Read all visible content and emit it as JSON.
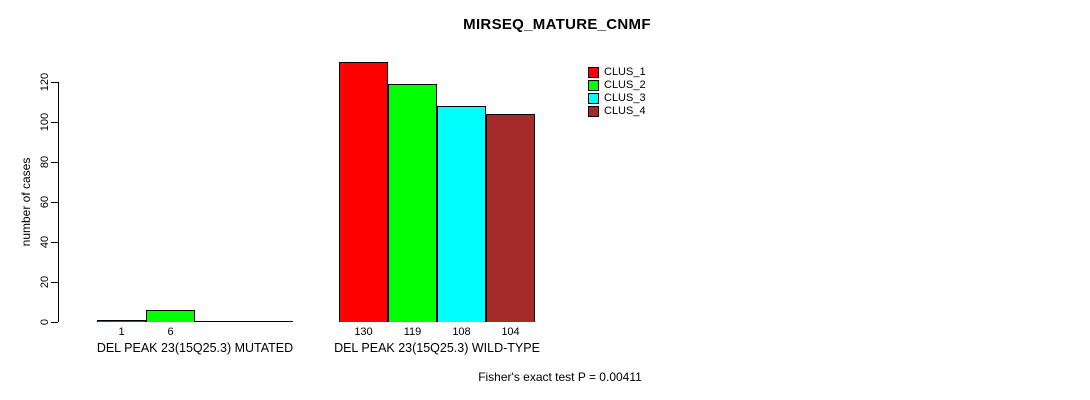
{
  "chart_data": {
    "type": "bar",
    "title": "MIRSEQ_MATURE_CNMF",
    "ylabel": "number of cases",
    "ylim": [
      0,
      130
    ],
    "yticks": [
      0,
      20,
      40,
      60,
      80,
      100,
      120
    ],
    "grid": false,
    "legend_position": "top-right",
    "categories": [
      "DEL PEAK 23(15Q25.3) MUTATED",
      "DEL PEAK 23(15Q25.3) WILD-TYPE"
    ],
    "series": [
      {
        "name": "CLUS_1",
        "color": "#ff0000",
        "values": [
          1,
          130
        ]
      },
      {
        "name": "CLUS_2",
        "color": "#00ff00",
        "values": [
          6,
          119
        ]
      },
      {
        "name": "CLUS_3",
        "color": "#00ffff",
        "values": [
          0,
          108
        ]
      },
      {
        "name": "CLUS_4",
        "color": "#a52a2a",
        "values": [
          0,
          104
        ]
      }
    ],
    "bar_value_labels": [
      [
        "1",
        "6",
        "",
        ""
      ],
      [
        "130",
        "119",
        "108",
        "104"
      ]
    ],
    "annotation": "Fisher's exact test P = 0.00411"
  },
  "layout_colors": {
    "background": "#ffffff",
    "axis": "#000000",
    "text": "#000000"
  }
}
